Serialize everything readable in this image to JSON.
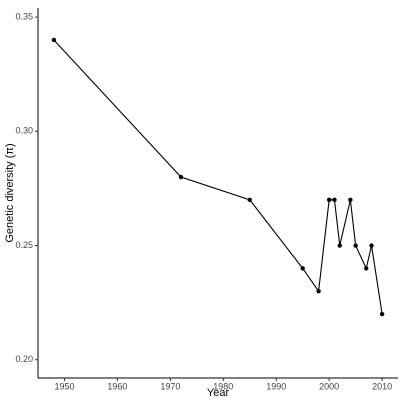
{
  "chart_data": {
    "type": "line",
    "x_label": "Year",
    "y_label": "Genetic diversity (π)",
    "series": [
      {
        "name": "Genetic diversity",
        "color": "#000000",
        "x": [
          1948,
          1972,
          1985,
          1995,
          1998,
          2000,
          2001,
          2002,
          2004,
          2005,
          2007,
          2008,
          2010
        ],
        "values": [
          0.34,
          0.28,
          0.27,
          0.24,
          0.23,
          0.27,
          0.27,
          0.25,
          0.27,
          0.25,
          0.24,
          0.25,
          0.22
        ]
      }
    ],
    "xlim": [
      1945,
      2013
    ],
    "xticks": [
      1950,
      1960,
      1970,
      1980,
      1990,
      2000,
      2010
    ],
    "ylim": [
      0.192,
      0.354
    ],
    "yticks": [
      {
        "value": 0.2,
        "label": "0.20"
      },
      0.25,
      {
        "value": 0.3,
        "label": "0.30"
      },
      0.35
    ],
    "grid": false
  }
}
